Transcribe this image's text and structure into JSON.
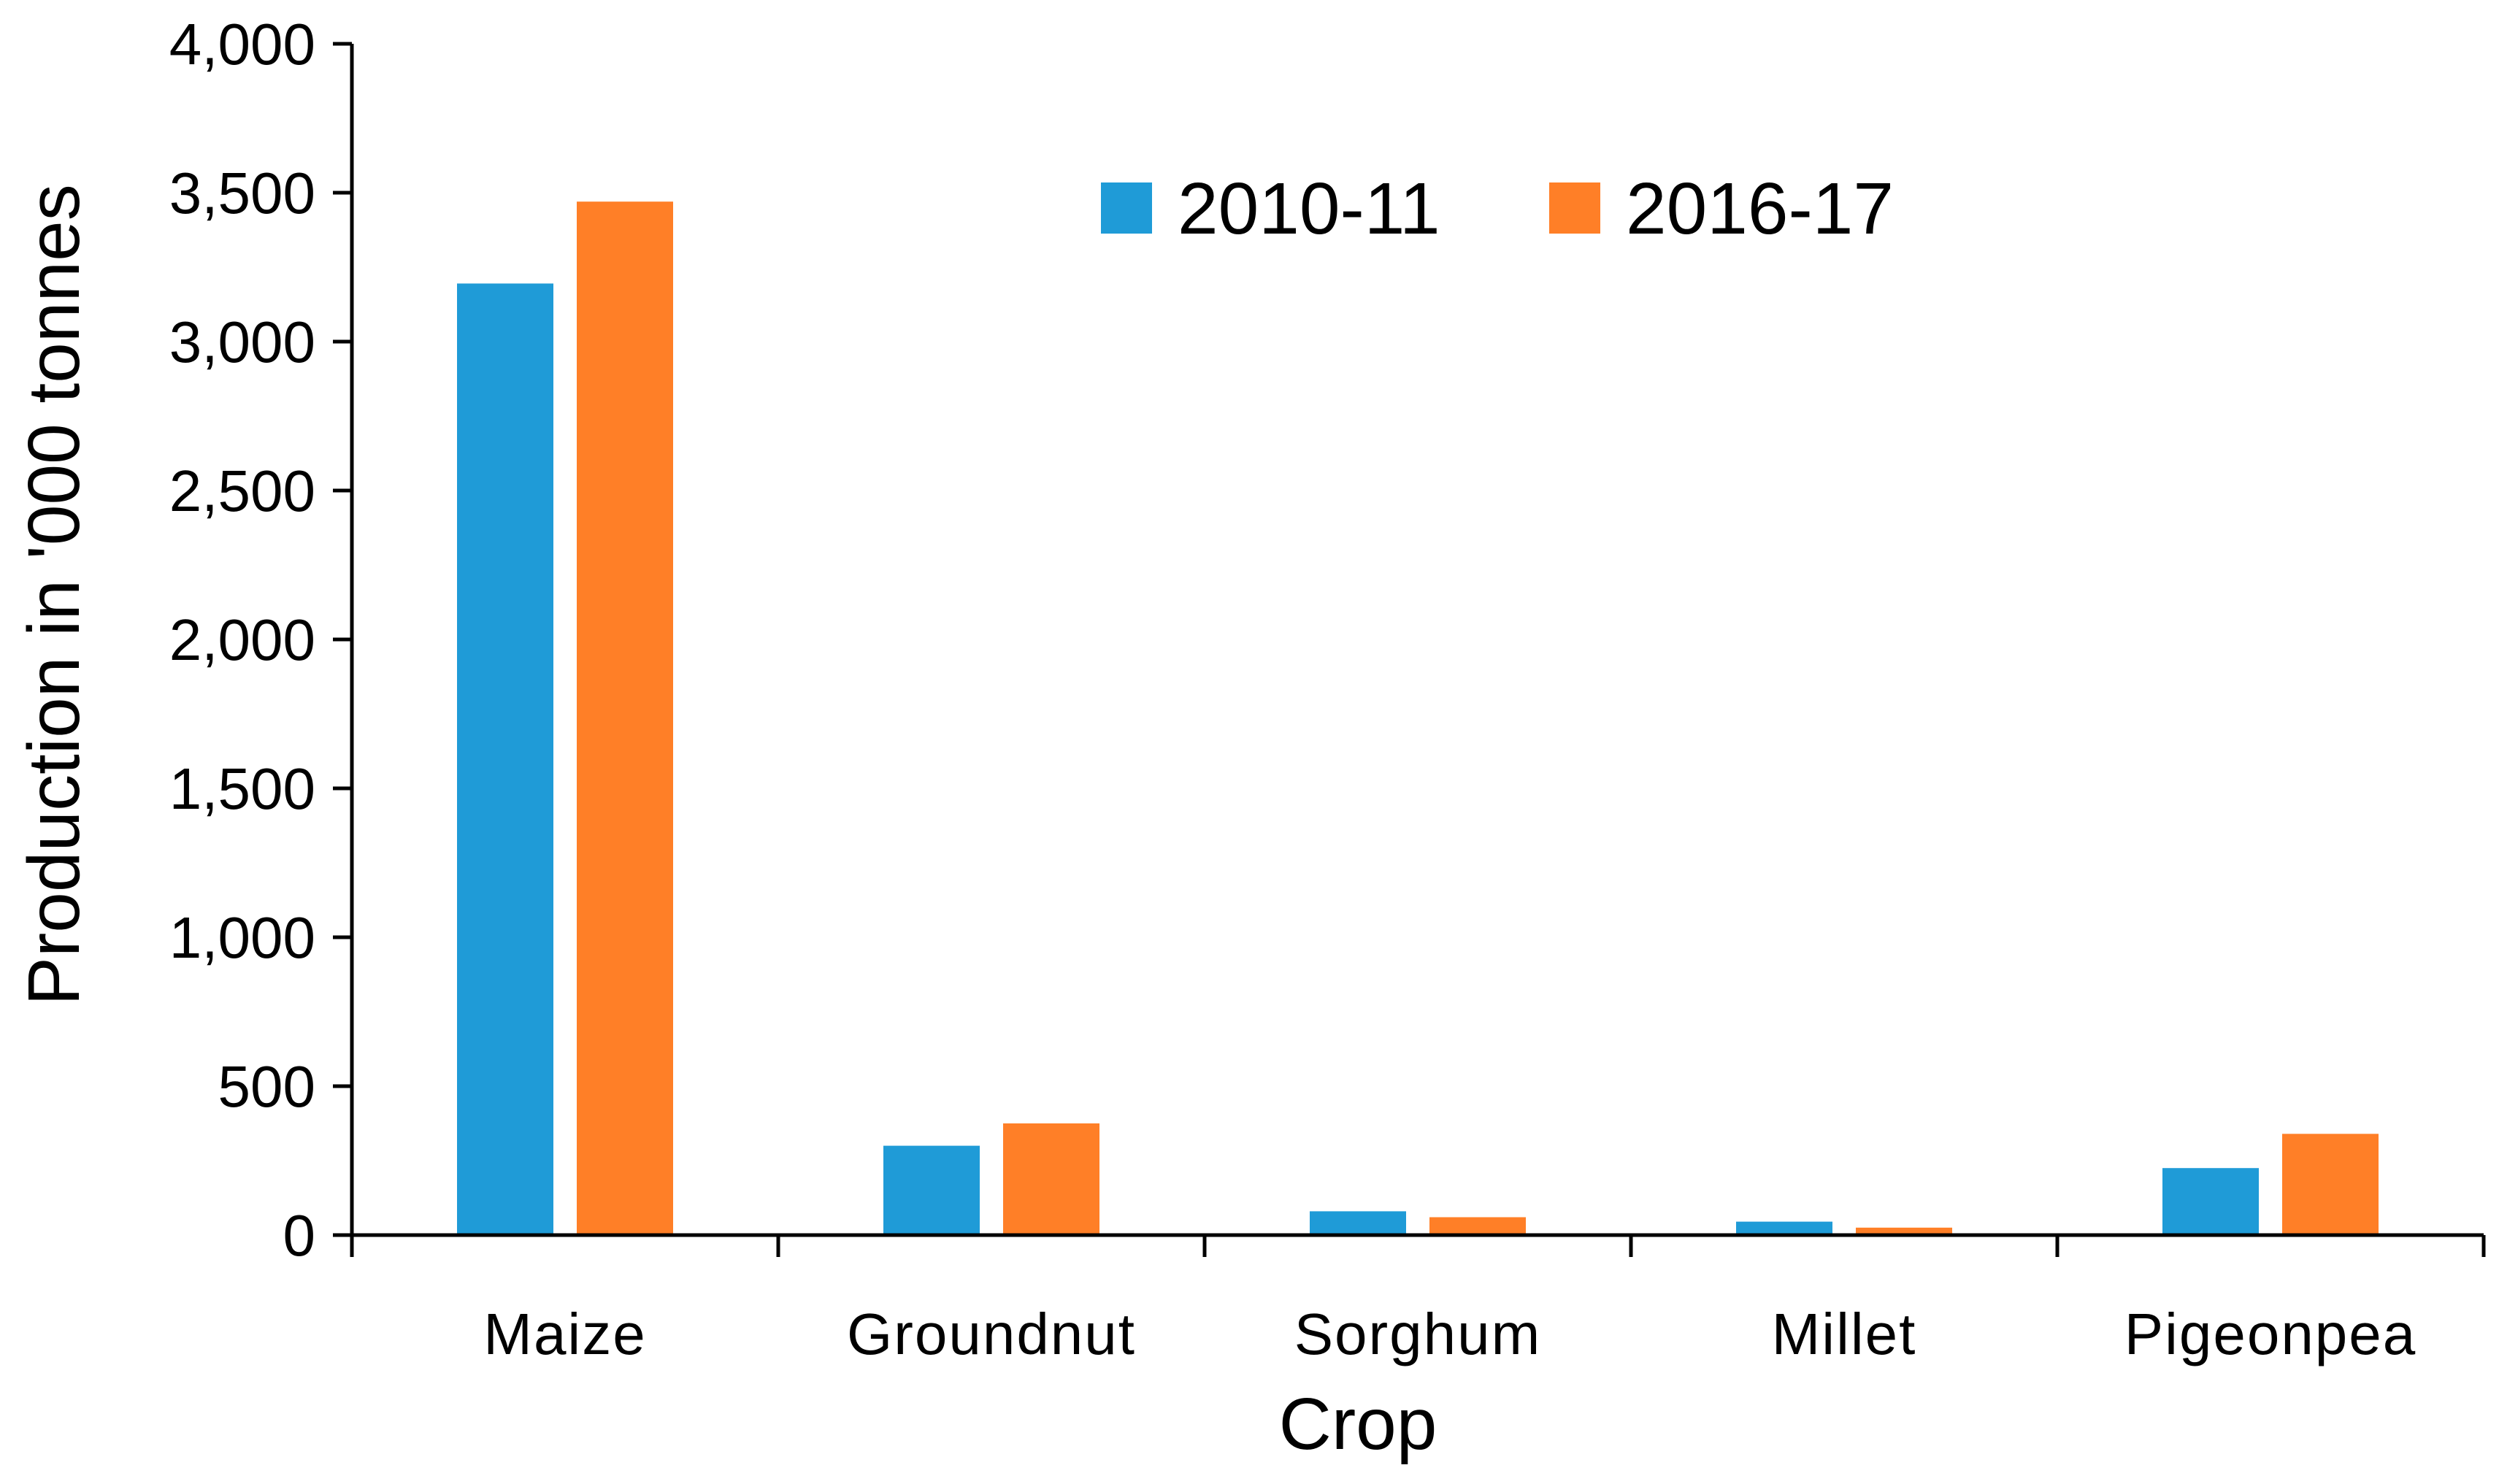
{
  "chart_data": {
    "type": "bar",
    "title": "",
    "xlabel": "Crop",
    "ylabel": "Production in '000 tonnes",
    "categories": [
      "Maize",
      "Groundnut",
      "Sorghum",
      "Millet",
      "Pigeonpea"
    ],
    "series": [
      {
        "name": "2010-11",
        "color": "#1F9BD7",
        "values": [
          3195,
          300,
          80,
          45,
          225
        ]
      },
      {
        "name": "2016-17",
        "color": "#FF7F27",
        "values": [
          3470,
          375,
          60,
          25,
          340
        ]
      }
    ],
    "ylim": [
      0,
      4000
    ],
    "yticks": [
      0,
      500,
      1000,
      1500,
      2000,
      2500,
      3000,
      3500,
      4000
    ],
    "ytick_labels": [
      "0",
      "500",
      "1,000",
      "1,500",
      "2,000",
      "2,500",
      "3,000",
      "3,500",
      "4,000"
    ],
    "grid": false,
    "legend_position": "top-center"
  }
}
